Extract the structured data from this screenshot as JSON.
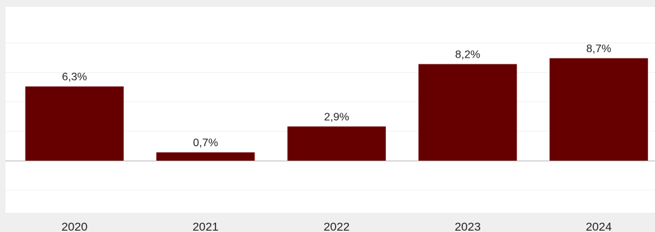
{
  "chart_data": {
    "type": "bar",
    "categories": [
      "2020",
      "2021",
      "2022",
      "2023",
      "2024"
    ],
    "values": [
      6.3,
      0.7,
      2.9,
      8.2,
      8.7
    ],
    "data_labels": [
      "6,3%",
      "0,7%",
      "2,9%",
      "8,2%",
      "8,7%"
    ],
    "ylim": [
      -4,
      11
    ],
    "grid": true,
    "legend": "none"
  },
  "colors": {
    "bar": "#660000",
    "plot_background": "#ffffff",
    "page_background": "#efefef",
    "gridline": "#f1f1f1",
    "zero_line": "#b4b4b4"
  }
}
